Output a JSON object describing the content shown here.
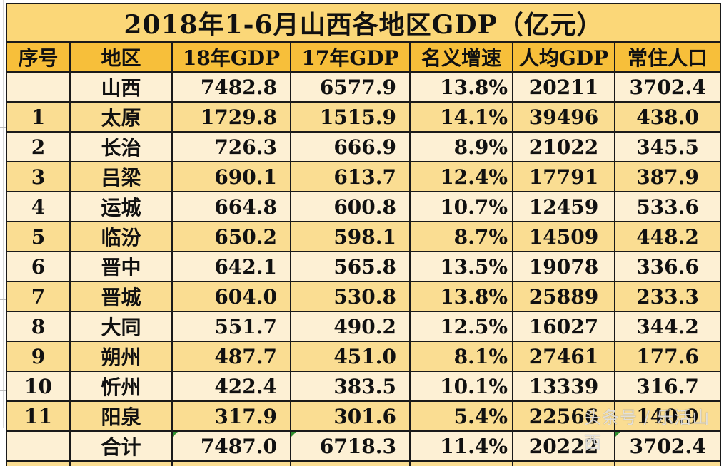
{
  "sheet": {
    "title": "2018年1-6月山西各地区GDP（亿元）",
    "columns": [
      "序号",
      "地区",
      "18年GDP",
      "17年GDP",
      "名义增速",
      "人均GDP",
      "常住人口"
    ],
    "rows": [
      {
        "idx": "",
        "region": "山西",
        "gdp18": "7482.8",
        "gdp17": "6577.9",
        "growth": "13.8%",
        "per_capita": "20211",
        "population": "3702.4"
      },
      {
        "idx": "1",
        "region": "太原",
        "gdp18": "1729.8",
        "gdp17": "1515.9",
        "growth": "14.1%",
        "per_capita": "39496",
        "population": "438.0"
      },
      {
        "idx": "2",
        "region": "长治",
        "gdp18": "726.3",
        "gdp17": "666.9",
        "growth": "8.9%",
        "per_capita": "21022",
        "population": "345.5"
      },
      {
        "idx": "3",
        "region": "吕梁",
        "gdp18": "690.1",
        "gdp17": "613.7",
        "growth": "12.4%",
        "per_capita": "17791",
        "population": "387.9"
      },
      {
        "idx": "4",
        "region": "运城",
        "gdp18": "664.8",
        "gdp17": "600.8",
        "growth": "10.7%",
        "per_capita": "12459",
        "population": "533.6"
      },
      {
        "idx": "5",
        "region": "临汾",
        "gdp18": "650.2",
        "gdp17": "598.1",
        "growth": "8.7%",
        "per_capita": "14509",
        "population": "448.2"
      },
      {
        "idx": "6",
        "region": "晋中",
        "gdp18": "642.1",
        "gdp17": "565.8",
        "growth": "13.5%",
        "per_capita": "19078",
        "population": "336.6"
      },
      {
        "idx": "7",
        "region": "晋城",
        "gdp18": "604.0",
        "gdp17": "530.8",
        "growth": "13.8%",
        "per_capita": "25889",
        "population": "233.3"
      },
      {
        "idx": "8",
        "region": "大同",
        "gdp18": "551.7",
        "gdp17": "490.2",
        "growth": "12.5%",
        "per_capita": "16027",
        "population": "344.2"
      },
      {
        "idx": "9",
        "region": "朔州",
        "gdp18": "487.7",
        "gdp17": "451.0",
        "growth": "8.1%",
        "per_capita": "27461",
        "population": "177.6"
      },
      {
        "idx": "10",
        "region": "忻州",
        "gdp18": "422.4",
        "gdp17": "383.5",
        "growth": "10.1%",
        "per_capita": "13339",
        "population": "316.7"
      },
      {
        "idx": "11",
        "region": "阳泉",
        "gdp18": "317.9",
        "gdp17": "301.6",
        "growth": "5.4%",
        "per_capita": "22566",
        "population": "140.9"
      },
      {
        "idx": "",
        "region": "合计",
        "gdp18": "7487.0",
        "gdp17": "6718.3",
        "growth": "11.4%",
        "per_capita": "20222",
        "population": "3702.4"
      }
    ]
  },
  "watermark": "头条号 / 乐活山西",
  "colors": {
    "title_bg": "#fbd778",
    "header_bg": "#f7bf3a",
    "row_light": "#fdf0d4",
    "row_gold": "#fadd92",
    "border": "#1a1a1a"
  }
}
